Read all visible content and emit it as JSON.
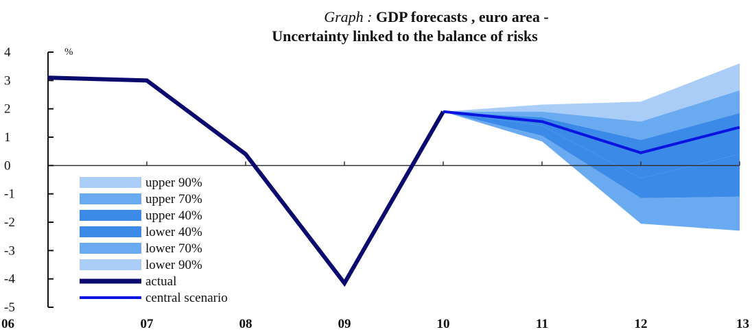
{
  "chart_data": {
    "type": "area",
    "title_prefix": "Graph :",
    "title_rest": " GDP forecasts , euro area -",
    "title_line2": "Uncertainty linked to the balance of risks",
    "ylabel": "%",
    "xlabel": "",
    "categories": [
      "06",
      "07",
      "08",
      "09",
      "10",
      "11",
      "12",
      "13"
    ],
    "x": [
      0,
      1,
      2,
      3,
      4,
      5,
      6,
      7
    ],
    "ylim": [
      -5,
      4
    ],
    "yticks": [
      4,
      3,
      2,
      1,
      0,
      -1,
      -2,
      -3,
      -4,
      -5
    ],
    "grid": false,
    "legend_position": "bottom-left",
    "series": [
      {
        "name": "upper 90%",
        "x": [
          4,
          5,
          6,
          7
        ],
        "values": [
          1.9,
          2.15,
          2.25,
          3.6
        ],
        "color": "#a9cdf7"
      },
      {
        "name": "upper 70%",
        "x": [
          4,
          5,
          6,
          7
        ],
        "values": [
          1.9,
          1.9,
          1.55,
          2.65
        ],
        "color": "#6aaaf0"
      },
      {
        "name": "upper 40%",
        "x": [
          4,
          5,
          6,
          7
        ],
        "values": [
          1.9,
          1.7,
          0.9,
          1.85
        ],
        "color": "#3c8ae8"
      },
      {
        "name": "lower 40%",
        "x": [
          4,
          5,
          6,
          7
        ],
        "values": [
          1.9,
          1.4,
          -0.45,
          0.4
        ],
        "color": "#3c8ae8"
      },
      {
        "name": "lower 70%",
        "x": [
          4,
          5,
          6,
          7
        ],
        "values": [
          1.9,
          1.05,
          -1.15,
          -1.1
        ],
        "color": "#6aaaf0"
      },
      {
        "name": "lower 90%",
        "x": [
          4,
          5,
          6,
          7
        ],
        "values": [
          1.9,
          0.85,
          -2.05,
          -2.3
        ],
        "color": "#a9cdf7"
      },
      {
        "name": "actual",
        "x": [
          0,
          1,
          2,
          3,
          4
        ],
        "values": [
          3.1,
          3.0,
          0.4,
          -4.15,
          1.9
        ],
        "color": "#0a0a6e"
      },
      {
        "name": "central scenario",
        "x": [
          4,
          5,
          6,
          7
        ],
        "values": [
          1.9,
          1.55,
          0.45,
          1.35
        ],
        "color": "#0a14e0"
      }
    ]
  }
}
